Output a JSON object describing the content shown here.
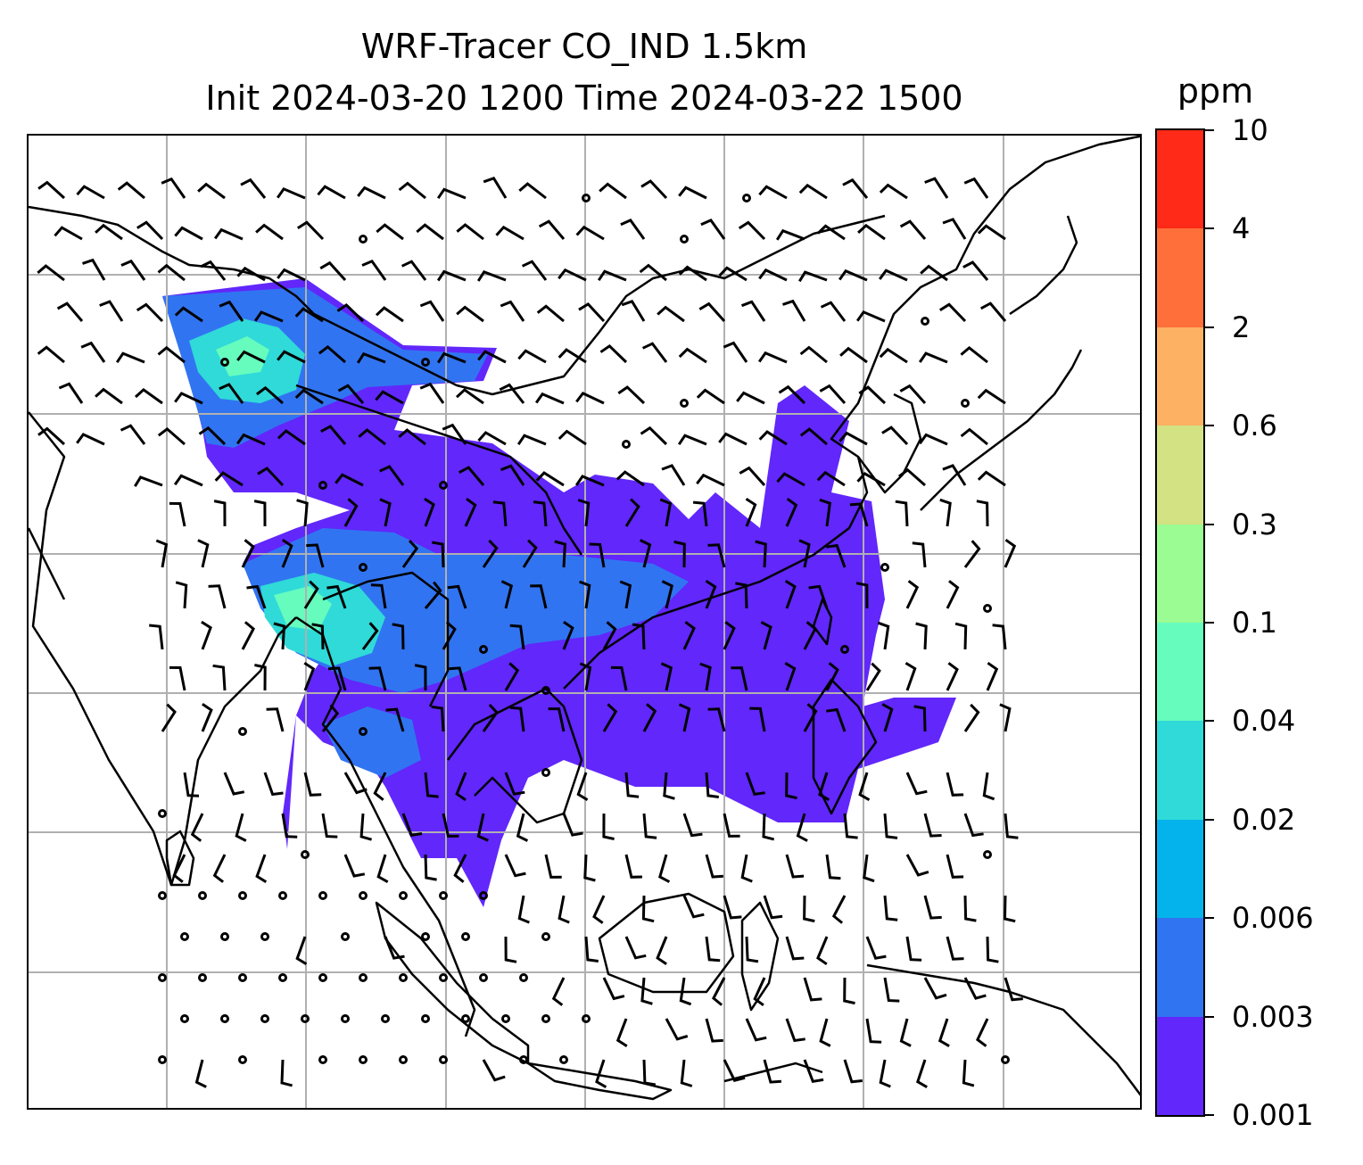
{
  "title": {
    "line1": "WRF-Tracer CO_IND 1.5km",
    "line2": "Init 2024-03-20 1200 Time 2024-03-22 1500"
  },
  "colorbar": {
    "unit": "ppm",
    "levels": [
      "0.001",
      "0.003",
      "0.006",
      "0.02",
      "0.04",
      "0.1",
      "0.3",
      "0.6",
      "2",
      "4",
      "10"
    ],
    "colors": [
      "#6127fb",
      "#3174f1",
      "#04b3eb",
      "#2fdad8",
      "#66fcbe",
      "#9afc92",
      "#d3e283",
      "#fdb163",
      "#fe6f3a",
      "#ff2a18"
    ]
  },
  "map": {
    "gridlines": "on",
    "colors": {
      "coast": "#000000",
      "grid": "#b0b0b0",
      "barb": "#000000"
    }
  }
}
